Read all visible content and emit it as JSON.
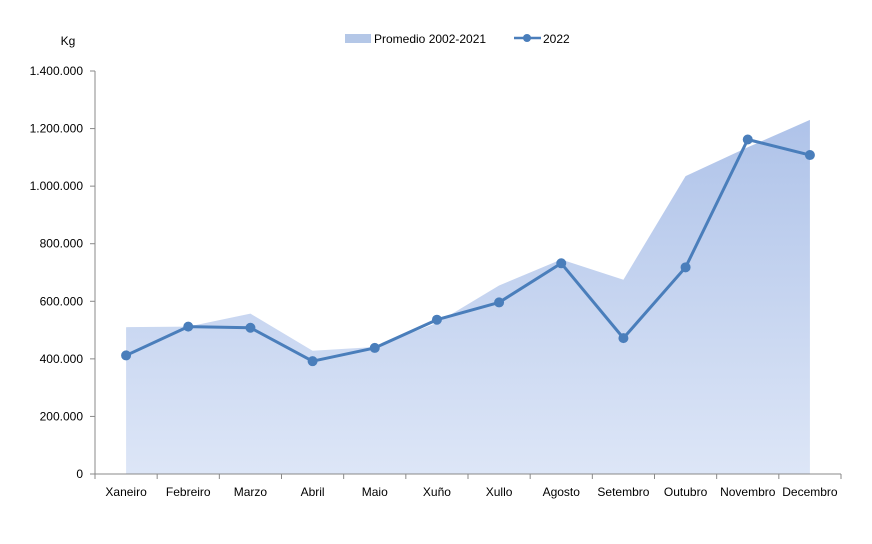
{
  "chart_data": {
    "type": "area",
    "ylabel": "Kg",
    "ylim": [
      0,
      1400000
    ],
    "ytick_values": [
      0,
      200000,
      400000,
      600000,
      800000,
      1000000,
      1200000,
      1400000
    ],
    "ytick_labels": [
      "0",
      "200.000",
      "400.000",
      "600.000",
      "800.000",
      "1.000.000",
      "1.200.000",
      "1.400.000"
    ],
    "categories": [
      "Xaneiro",
      "Febreiro",
      "Marzo",
      "Abril",
      "Maio",
      "Xuño",
      "Xullo",
      "Agosto",
      "Setembro",
      "Outubro",
      "Novembro",
      "Decembro"
    ],
    "series": [
      {
        "name": "Promedio 2002-2021",
        "kind": "area",
        "color": "#b4c7e7",
        "values": [
          510000,
          512000,
          557000,
          428000,
          441000,
          525000,
          655000,
          745000,
          675000,
          1035000,
          1135000,
          1230000
        ]
      },
      {
        "name": "2022",
        "kind": "line",
        "color": "#4a7ebb",
        "values": [
          412000,
          512000,
          508000,
          392000,
          438000,
          536000,
          596000,
          732000,
          472000,
          718000,
          1162000,
          1108000
        ]
      }
    ],
    "legend_position": "top-center",
    "grid": false
  }
}
